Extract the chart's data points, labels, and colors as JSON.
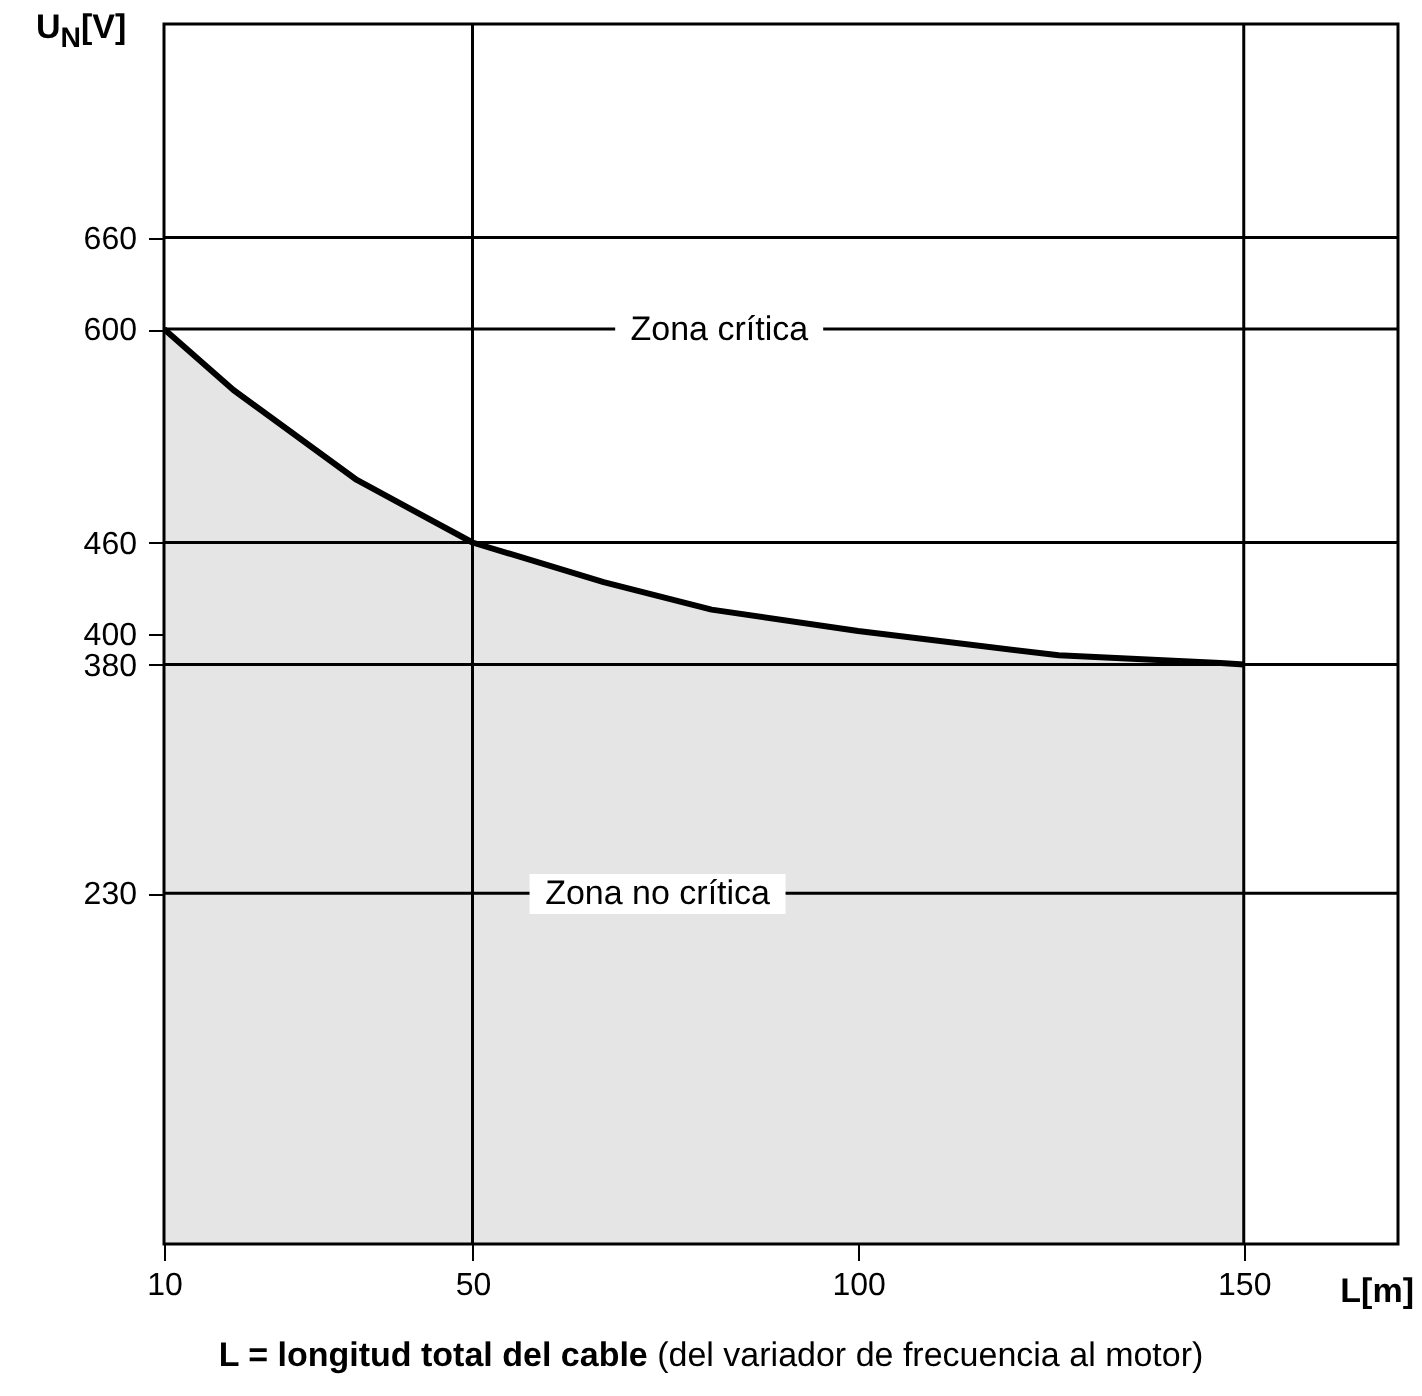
{
  "chart_data": {
    "type": "area",
    "ylabel": "U$_{N}$[V]",
    "xlabel": "L[m]",
    "x": [
      10,
      19,
      35,
      50,
      67,
      81,
      100,
      126,
      147,
      150,
      150
    ],
    "series": [
      {
        "color": "#000000",
        "values": [
          600,
          560,
          501,
          460,
          434,
          416,
          402,
          386,
          381,
          380,
          0
        ]
      }
    ],
    "xlim": [
      10,
      170
    ],
    "xticks": [
      10,
      50,
      100,
      150
    ],
    "ylim": [
      0,
      800
    ],
    "yticks": [
      230,
      380,
      400,
      460,
      600,
      660
    ],
    "ref_lines": [
      {
        "axis": "y",
        "value": 660
      },
      {
        "axis": "y",
        "value": 600
      },
      {
        "axis": "y",
        "value": 460
      },
      {
        "axis": "y",
        "value": 380
      },
      {
        "axis": "y",
        "value": 230
      },
      {
        "axis": "x",
        "value": 50
      },
      {
        "axis": "x",
        "value": 150
      }
    ],
    "annotations": [
      "Zona crítica",
      "Zona no crítica",
      "L = longitud total del cable",
      "(del variador de frecuencia al motor)"
    ]
  }
}
